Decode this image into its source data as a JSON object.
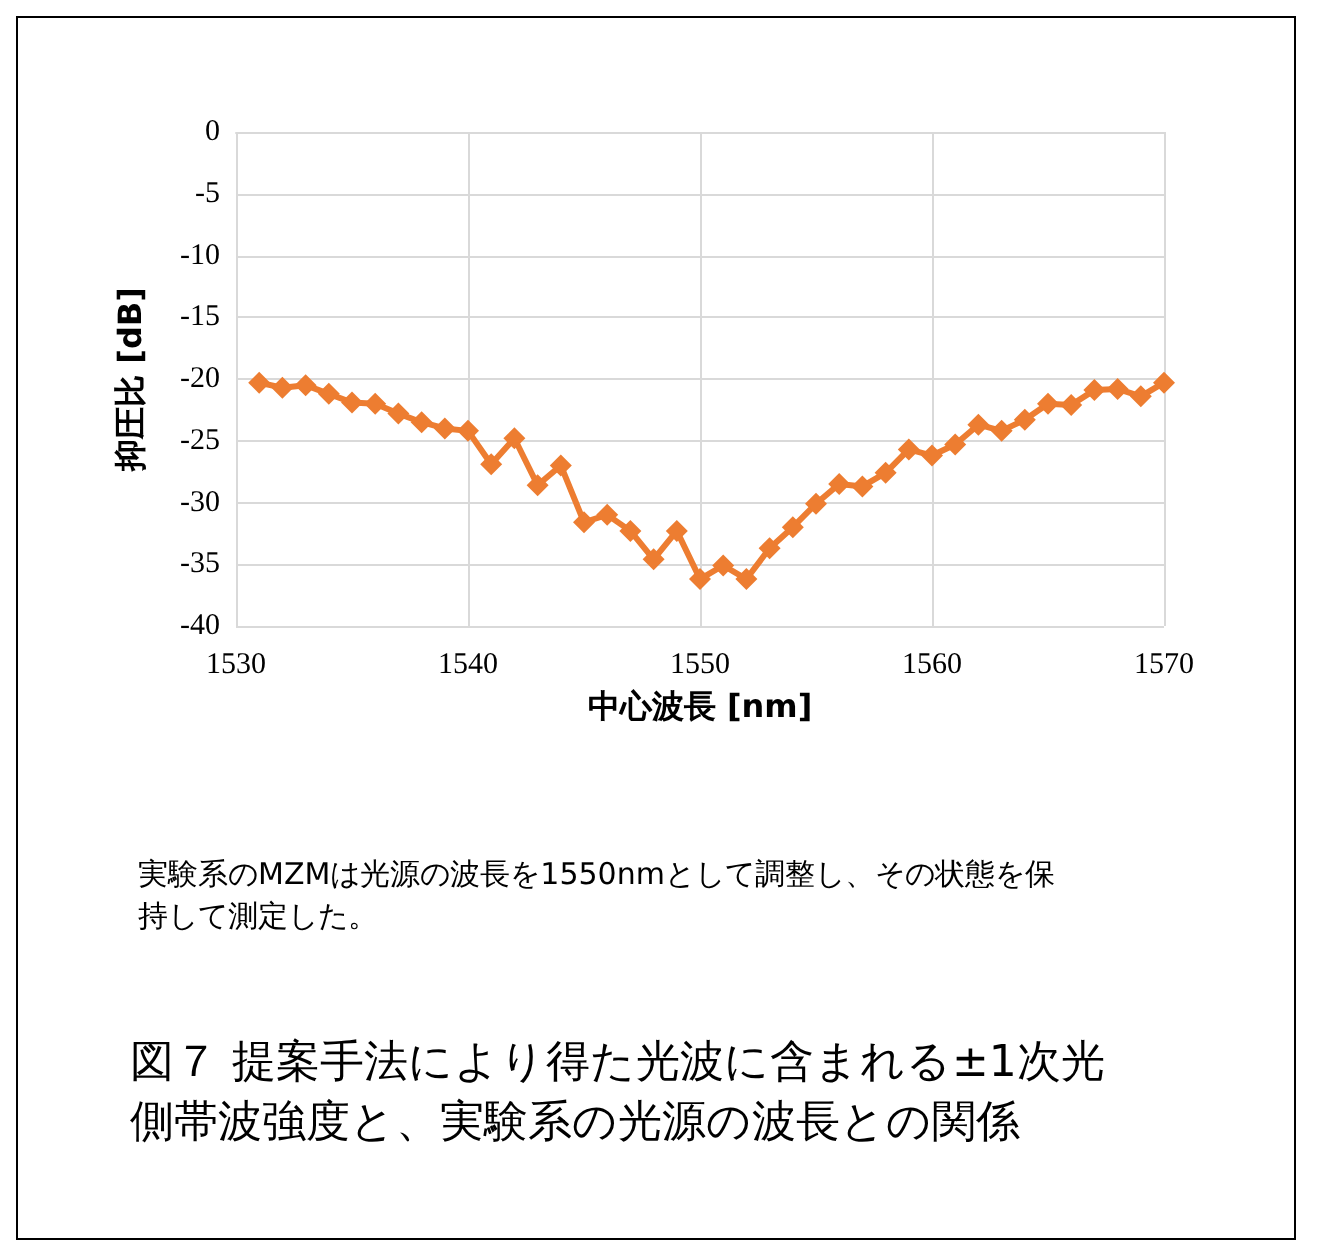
{
  "chart_data": {
    "type": "line",
    "xlabel": "中心波長 [nm]",
    "ylabel": "抑圧比 [dB]",
    "x": [
      1531,
      1532,
      1533,
      1534,
      1535,
      1536,
      1537,
      1538,
      1539,
      1540,
      1541,
      1542,
      1543,
      1544,
      1545,
      1546,
      1547,
      1548,
      1549,
      1550,
      1551,
      1552,
      1553,
      1554,
      1555,
      1556,
      1557,
      1558,
      1559,
      1560,
      1561,
      1562,
      1563,
      1564,
      1565,
      1566,
      1567,
      1568,
      1569,
      1570
    ],
    "series": [
      {
        "color": "#ed7d31",
        "values": [
          -20.3,
          -20.7,
          -20.5,
          -21.2,
          -21.9,
          -22.0,
          -22.8,
          -23.5,
          -24.0,
          -24.2,
          -26.9,
          -24.8,
          -28.6,
          -27.0,
          -31.6,
          -31.0,
          -32.3,
          -34.6,
          -32.3,
          -36.2,
          -35.1,
          -36.2,
          -33.7,
          -32.0,
          -30.1,
          -28.5,
          -28.7,
          -27.6,
          -25.7,
          -26.2,
          -25.3,
          -23.7,
          -24.2,
          -23.3,
          -22.0,
          -22.1,
          -20.9,
          -20.8,
          -21.4,
          -20.3
        ]
      }
    ],
    "xlim": [
      1530,
      1570
    ],
    "xticks": [
      1530,
      1540,
      1550,
      1560,
      1570
    ],
    "ylim": [
      -40,
      0
    ],
    "yticks": [
      -40,
      -35,
      -30,
      -25,
      -20,
      -15,
      -10,
      -5,
      0
    ],
    "grid": true,
    "marker": "diamond",
    "line_style": "solid",
    "annotations": [
      "実験系のMZMは光源の波長を1550nmとして調整し、その状態を保持して測定した。",
      "図７ 提案手法により得た光波に含まれる±1次光側帯波強度と、実験系の光源の波長との関係"
    ]
  }
}
